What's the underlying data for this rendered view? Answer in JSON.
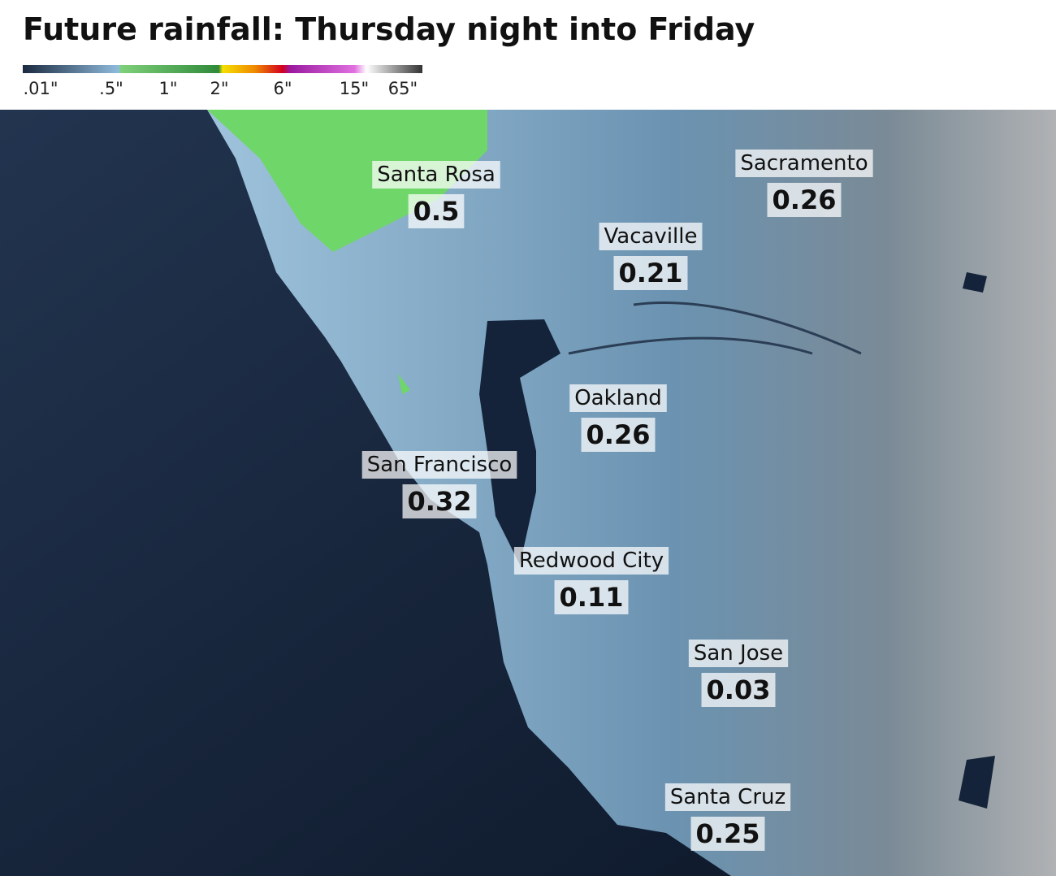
{
  "title": "Future rainfall: Thursday night into Friday",
  "legend": {
    "labels": [
      ".01\"",
      ".5\"",
      "1\"",
      "2\"",
      "6\"",
      "15\"",
      "65\""
    ]
  },
  "cities": [
    {
      "name": "Santa Rosa",
      "value": 0.5
    },
    {
      "name": "Sacramento",
      "value": 0.26
    },
    {
      "name": "Vacaville",
      "value": 0.21
    },
    {
      "name": "Oakland",
      "value": 0.26
    },
    {
      "name": "San Francisco",
      "value": 0.32
    },
    {
      "name": "Redwood City",
      "value": 0.11
    },
    {
      "name": "San Jose",
      "value": 0.03
    },
    {
      "name": "Santa Cruz",
      "value": 0.25
    }
  ]
}
